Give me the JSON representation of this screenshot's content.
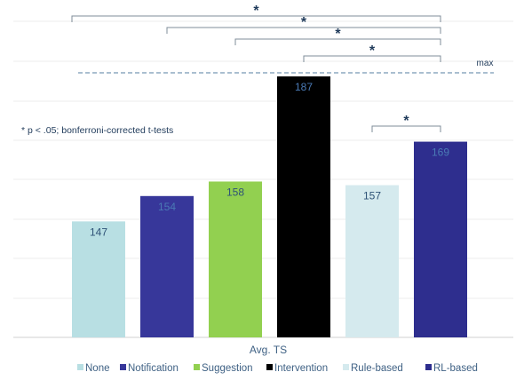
{
  "chart_data": {
    "type": "bar",
    "categories": [
      "None",
      "Notification",
      "Suggestion",
      "Intervention",
      "Rule-based",
      "RL-based"
    ],
    "values": [
      147,
      154,
      158,
      187,
      157,
      169
    ],
    "data_labels": [
      "147",
      "154",
      "158",
      "187",
      "157",
      "169"
    ],
    "colors": [
      "#b8dfe3",
      "#37379a",
      "#92d050",
      "#000000",
      "#d5eaee",
      "#2e2e8e"
    ],
    "label_colors": [
      "#2f5377",
      "#4a7ab5",
      "#2f5377",
      "#4a7ab5",
      "#2f5377",
      "#4a7ab5"
    ],
    "xlabel": "Avg. TS",
    "ylim": [
      115,
      196
    ],
    "grid": true,
    "legend_position": "bottom",
    "reference_line": {
      "value": 188,
      "label": "max",
      "style": "dashed",
      "color": "#8ea9c1"
    },
    "note": "* p < .05; bonferroni-corrected t-tests",
    "significance": [
      {
        "from": "None",
        "to": "RL-based",
        "label": "*"
      },
      {
        "from": "Notification",
        "to": "RL-based",
        "label": "*"
      },
      {
        "from": "Suggestion",
        "to": "RL-based",
        "label": "*"
      },
      {
        "from": "Intervention",
        "to": "RL-based",
        "label": "*"
      },
      {
        "from": "Rule-based",
        "to": "RL-based",
        "label": "*"
      }
    ]
  }
}
